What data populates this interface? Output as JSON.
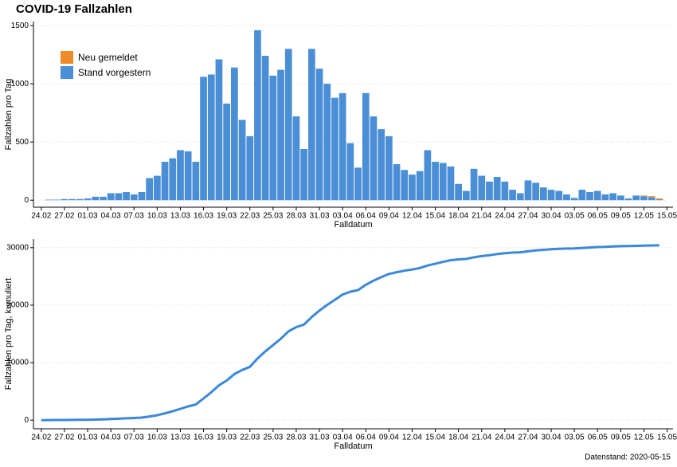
{
  "caption": "Datenstand: 2020-05-15",
  "chart_data": [
    {
      "type": "bar",
      "title": "COVID-19 Fallzahlen",
      "x_label": "Falldatum",
      "y_label": "Fallzahlen pro Tag",
      "categories": [
        "24.02",
        null,
        null,
        "27.02",
        null,
        null,
        "01.03",
        null,
        null,
        "04.03",
        null,
        null,
        "07.03",
        null,
        null,
        "10.03",
        null,
        null,
        "13.03",
        null,
        null,
        "16.03",
        null,
        null,
        "19.03",
        null,
        null,
        "22.03",
        null,
        null,
        "25.03",
        null,
        null,
        "28.03",
        null,
        null,
        "31.03",
        null,
        null,
        "03.04",
        null,
        null,
        "06.04",
        null,
        null,
        "09.04",
        null,
        null,
        "12.04",
        null,
        null,
        "15.04",
        null,
        null,
        "18.04",
        null,
        null,
        "21.04",
        null,
        null,
        "24.04",
        null,
        null,
        "27.04",
        null,
        null,
        "30.04",
        null,
        null,
        "03.05",
        null,
        null,
        "06.05",
        null,
        null,
        "09.05",
        null,
        null,
        "12.05",
        null,
        null,
        "15.05"
      ],
      "series": [
        {
          "name": "Stand vorgestern",
          "color": "#4a8fd6",
          "values": [
            null,
            5,
            5,
            10,
            10,
            10,
            15,
            30,
            30,
            60,
            60,
            70,
            50,
            70,
            190,
            210,
            330,
            360,
            430,
            420,
            330,
            1060,
            1080,
            1210,
            830,
            1140,
            690,
            550,
            1460,
            1240,
            1070,
            1120,
            1300,
            720,
            440,
            1300,
            1130,
            1000,
            880,
            920,
            490,
            280,
            920,
            720,
            610,
            550,
            310,
            260,
            220,
            250,
            430,
            330,
            320,
            290,
            140,
            80,
            270,
            210,
            160,
            200,
            160,
            90,
            60,
            170,
            150,
            110,
            90,
            80,
            50,
            20,
            90,
            70,
            80,
            50,
            60,
            40,
            15,
            40,
            35,
            25,
            5,
            null
          ]
        },
        {
          "name": "Neu gemeldet",
          "color": "#ee8a2a",
          "values": [
            null,
            null,
            null,
            null,
            null,
            null,
            null,
            null,
            null,
            null,
            null,
            null,
            null,
            null,
            null,
            null,
            null,
            null,
            null,
            null,
            null,
            null,
            null,
            null,
            null,
            null,
            null,
            null,
            null,
            null,
            null,
            null,
            null,
            null,
            null,
            null,
            null,
            null,
            null,
            null,
            null,
            null,
            null,
            null,
            null,
            null,
            null,
            null,
            null,
            null,
            null,
            null,
            null,
            null,
            null,
            null,
            null,
            null,
            null,
            null,
            null,
            null,
            null,
            null,
            null,
            null,
            null,
            null,
            null,
            null,
            null,
            null,
            null,
            null,
            null,
            null,
            null,
            null,
            5,
            10,
            10,
            null
          ]
        }
      ],
      "stacked": true,
      "legend": "top-left",
      "ylim": [
        -60,
        1535
      ],
      "yticks": [
        0,
        500,
        1000,
        1500
      ],
      "grid": true
    },
    {
      "type": "line",
      "x_label": "Falldatum",
      "y_label": "Fallzahlen pro Tag, kumuliert",
      "categories": [
        "24.02",
        null,
        null,
        "27.02",
        null,
        null,
        "01.03",
        null,
        null,
        "04.03",
        null,
        null,
        "07.03",
        null,
        null,
        "10.03",
        null,
        null,
        "13.03",
        null,
        null,
        "16.03",
        null,
        null,
        "19.03",
        null,
        null,
        "22.03",
        null,
        null,
        "25.03",
        null,
        null,
        "28.03",
        null,
        null,
        "31.03",
        null,
        null,
        "03.04",
        null,
        null,
        "06.04",
        null,
        null,
        "09.04",
        null,
        null,
        "12.04",
        null,
        null,
        "15.04",
        null,
        null,
        "18.04",
        null,
        null,
        "21.04",
        null,
        null,
        "24.04",
        null,
        null,
        "27.04",
        null,
        null,
        "30.04",
        null,
        null,
        "03.05",
        null,
        null,
        "06.05",
        null,
        null,
        "09.05",
        null,
        null,
        "12.05",
        null,
        null,
        "15.05"
      ],
      "series": [
        {
          "name": "kumuliert",
          "color": "#3b88d8",
          "values": [
            0,
            10,
            20,
            30,
            40,
            50,
            70,
            100,
            130,
            190,
            250,
            320,
            370,
            440,
            630,
            840,
            1170,
            1530,
            1960,
            2380,
            2710,
            3770,
            4850,
            6060,
            6890,
            8030,
            8720,
            9270,
            10730,
            11970,
            13040,
            14160,
            15460,
            16180,
            16620,
            17920,
            19050,
            20050,
            20930,
            21850,
            22340,
            22620,
            23540,
            24260,
            24870,
            25420,
            25730,
            25990,
            26210,
            26460,
            26890,
            27220,
            27540,
            27830,
            27970,
            28050,
            28320,
            28530,
            28690,
            28890,
            29050,
            29140,
            29200,
            29370,
            29520,
            29630,
            29720,
            29800,
            29850,
            29870,
            29960,
            30030,
            30110,
            30160,
            30220,
            30260,
            30275,
            30315,
            30355,
            30390,
            30405,
            null
          ]
        }
      ],
      "ylim": [
        -1500,
        31500
      ],
      "yticks": [
        0,
        10000,
        20000,
        30000
      ],
      "grid": true
    }
  ]
}
